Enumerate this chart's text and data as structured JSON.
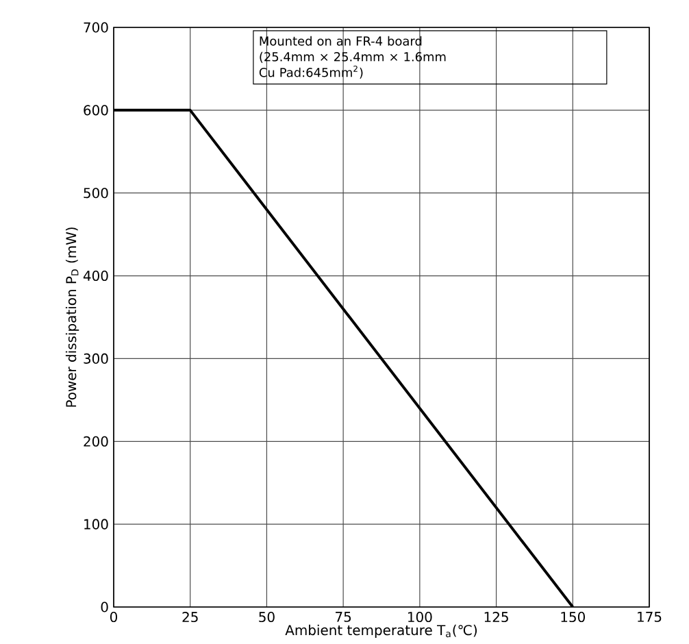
{
  "chart_data": {
    "type": "line",
    "x": [
      0,
      25,
      150
    ],
    "series": [
      {
        "color": "#000000",
        "values": [
          600,
          600,
          0
        ]
      }
    ],
    "xlim": [
      0,
      175
    ],
    "xticks": [
      0,
      25,
      50,
      75,
      100,
      125,
      150,
      175
    ],
    "ylim": [
      0,
      700
    ],
    "yticks": [
      0,
      100,
      200,
      300,
      400,
      500,
      600,
      700
    ],
    "xlabel": "Ambient temperature  T$_{a}$(℃)",
    "ylabel": "Power dissipation  P$_{D}$  (mW)",
    "annotations": [
      "Mounted on an FR-4 board",
      "(25.4mm × 25.4mm × 1.6mm",
      " Cu Pad:645mm$^{2}$)"
    ],
    "grid": true,
    "marker": "none",
    "line_style": "solid"
  }
}
